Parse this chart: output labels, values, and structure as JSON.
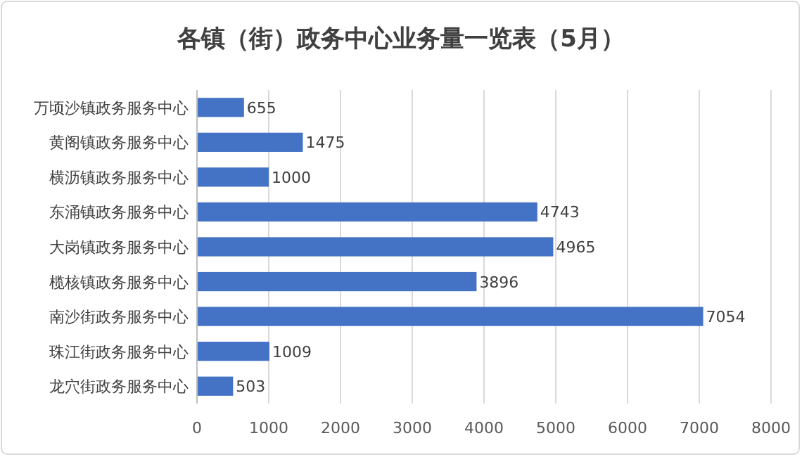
{
  "chart_data": {
    "type": "bar",
    "orientation": "horizontal",
    "title": "各镇（街）政务中心业务量一览表（5月）",
    "categories": [
      "万顷沙镇政务服务中心",
      "黄阁镇政务服务中心",
      "横沥镇政务服务中心",
      "东涌镇政务服务中心",
      "大岗镇政务服务中心",
      "榄核镇政务服务中心",
      "南沙街政务服务中心",
      "珠江街政务服务中心",
      "龙穴街政务服务中心"
    ],
    "values": [
      655,
      1475,
      1000,
      4743,
      4965,
      3896,
      7054,
      1009,
      503
    ],
    "color": "#4472c4",
    "xlim": [
      0,
      8000
    ],
    "xticks": [
      0,
      1000,
      2000,
      3000,
      4000,
      5000,
      6000,
      7000,
      8000
    ],
    "grid": "x",
    "data_labels": true
  }
}
